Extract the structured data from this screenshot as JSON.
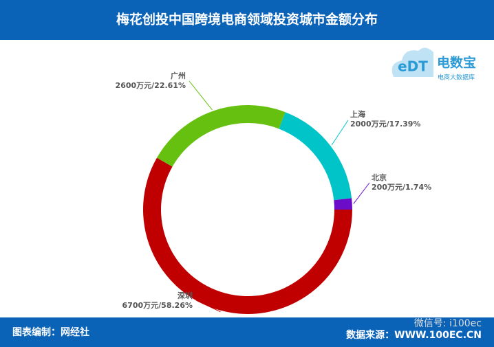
{
  "chart_data": {
    "type": "donut",
    "title": "梅花创投中国跨境电商领域投资城市金额分布",
    "categories": [
      "深圳",
      "广州",
      "上海",
      "北京"
    ],
    "values": [
      6700,
      2600,
      2000,
      200
    ],
    "value_labels": [
      "6700万元/58.26%",
      "2600万元/22.61%",
      "2000万元/17.39%",
      "200万元/1.74%"
    ],
    "colors": [
      "#c00000",
      "#66c010",
      "#00c4c8",
      "#6a0cc8"
    ]
  },
  "logo": {
    "mark": "eDT",
    "name": "电数宝",
    "subtitle": "电商大数据库"
  },
  "footer": {
    "left": "图表编制：网经社",
    "right": "数据来源：WWW.100EC.CN",
    "watermark": "微信号: i100ec"
  }
}
